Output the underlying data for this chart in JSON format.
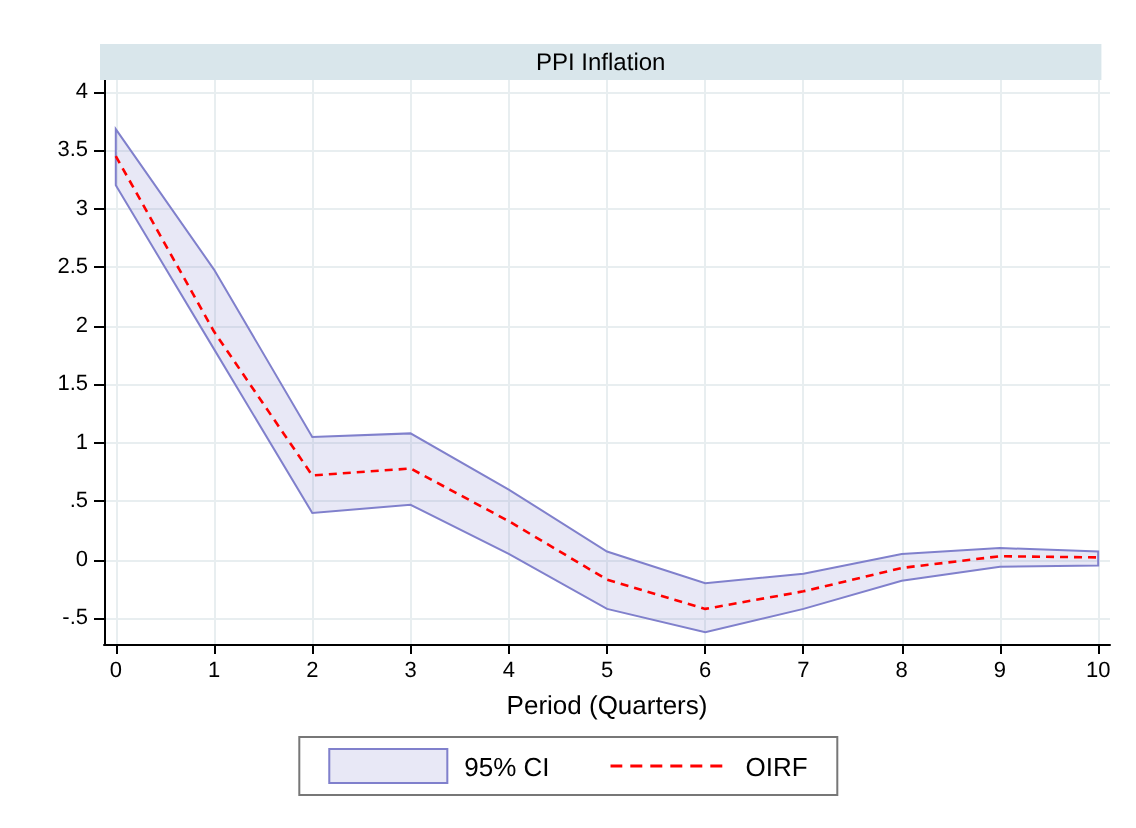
{
  "chart_data": {
    "type": "line",
    "title": "PPI Inflation",
    "xlabel": "Period (Quarters)",
    "x": [
      0,
      1,
      2,
      3,
      4,
      5,
      6,
      7,
      8,
      9,
      10
    ],
    "annotations": [
      "95% CI"
    ],
    "series": [
      {
        "name": "OIRF",
        "color": "#ff0000",
        "line_style": "dashed",
        "marker": "none",
        "values": [
          3.45,
          1.95,
          0.72,
          0.78,
          0.33,
          -0.17,
          -0.42,
          -0.27,
          -0.07,
          0.03,
          0.02
        ],
        "lower": [
          3.2,
          1.8,
          0.4,
          0.47,
          0.05,
          -0.42,
          -0.62,
          -0.42,
          -0.18,
          -0.06,
          -0.05
        ],
        "upper": [
          3.68,
          2.48,
          1.05,
          1.08,
          0.6,
          0.07,
          -0.2,
          -0.12,
          0.05,
          0.1,
          0.07
        ]
      }
    ],
    "xlim": [
      -0.12,
      10.12
    ],
    "xticks": [
      0,
      1,
      2,
      3,
      4,
      5,
      6,
      7,
      8,
      9,
      10
    ],
    "ylim": [
      -0.72,
      4.1
    ],
    "yticks": [
      {
        "value": -0.5,
        "label": "-.5"
      },
      0,
      {
        "value": 0.5,
        "label": ".5"
      },
      1,
      1.5,
      2,
      2.5,
      3,
      3.5,
      4
    ],
    "grid": true,
    "legend": "bottom"
  }
}
